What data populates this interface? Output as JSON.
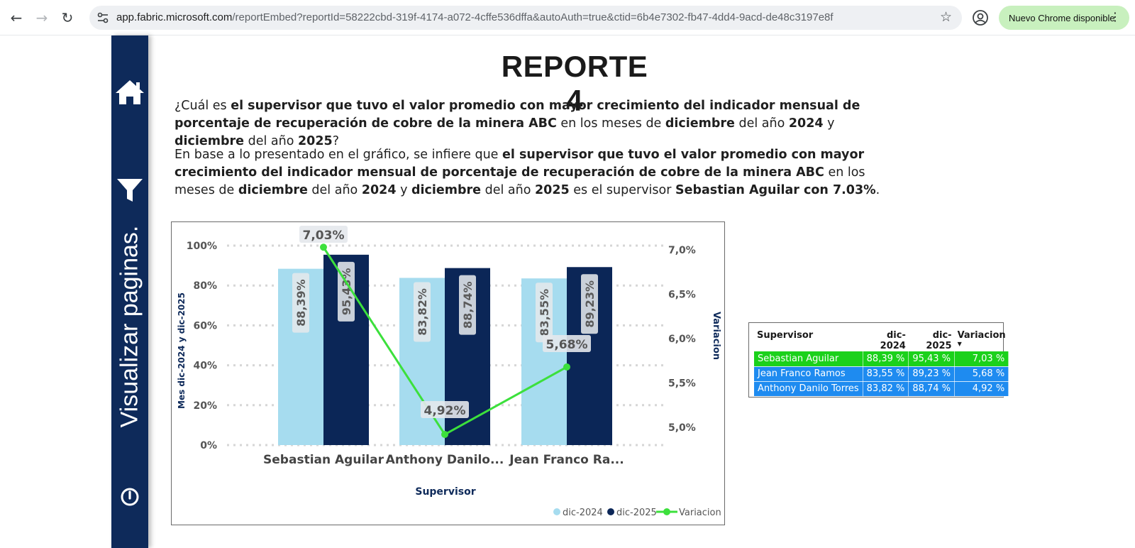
{
  "browser": {
    "url_host": "app.fabric.microsoft.com",
    "url_path": "/reportEmbed?reportId=58222cbd-319f-4174-a072-4cffe536dffa&autoAuth=true&ctid=6b4e7302-fb47-4dd4-9acd-de48c3197e8f",
    "update_label": "Nuevo Chrome disponible",
    "icons": [
      "back-icon",
      "forward-icon",
      "reload-icon",
      "site-settings-icon",
      "star-icon",
      "profile-icon",
      "more-icon"
    ]
  },
  "sidebar": {
    "vertical_label": "Visualizar paginas.",
    "icons": [
      "home-icon",
      "filter-icon",
      "power-icon"
    ],
    "color": "#0e2a5a"
  },
  "report": {
    "title": "REPORTE 4",
    "question": [
      {
        "t": "¿Cuál es ",
        "b": false
      },
      {
        "t": "el supervisor que tuvo el valor promedio con mayor crecimiento del indicador mensual de porcentaje de recuperación de cobre de la minera ABC",
        "b": true
      },
      {
        "t": " en los meses de ",
        "b": false
      },
      {
        "t": "diciembre",
        "b": true
      },
      {
        "t": " del año ",
        "b": false
      },
      {
        "t": "2024",
        "b": true
      },
      {
        "t": " y ",
        "b": false
      },
      {
        "t": "diciembre",
        "b": true
      },
      {
        "t": " del año ",
        "b": false
      },
      {
        "t": "2025",
        "b": true
      },
      {
        "t": "?",
        "b": false
      }
    ],
    "answer": [
      {
        "t": "En base a lo presentado en el gráfico, se infiere que ",
        "b": false
      },
      {
        "t": "el supervisor que tuvo el valor promedio con mayor crecimiento del indicador mensual de porcentaje de recuperación de cobre de la minera ABC",
        "b": true
      },
      {
        "t": " en los meses de ",
        "b": false
      },
      {
        "t": "diciembre",
        "b": true
      },
      {
        "t": " del año ",
        "b": false
      },
      {
        "t": "2024",
        "b": true
      },
      {
        "t": " y ",
        "b": false
      },
      {
        "t": "diciembre",
        "b": true
      },
      {
        "t": " del año ",
        "b": false
      },
      {
        "t": "2025",
        "b": true
      },
      {
        "t": " es el supervisor ",
        "b": false
      },
      {
        "t": "Sebastian Aguilar con 7.03%",
        "b": true
      },
      {
        "t": ".",
        "b": false
      }
    ]
  },
  "chart_data": {
    "type": "bar",
    "categories": [
      "Sebastian Aguilar",
      "Anthony Danilo...",
      "Jean Franco Ra..."
    ],
    "xlabel": "Supervisor",
    "ylabel": "Mes dic-2024 y dic-2025",
    "y2label": "Variacion",
    "ylim": [
      0,
      100
    ],
    "y2lim": [
      4.8,
      7.1
    ],
    "yticks": [
      "0%",
      "20%",
      "40%",
      "60%",
      "80%",
      "100%"
    ],
    "y2ticks": [
      "5,0%",
      "5,5%",
      "6,0%",
      "6,5%",
      "7,0%"
    ],
    "grid": true,
    "legend_position": "bottom-right",
    "series": [
      {
        "name": "dic-2024",
        "kind": "bar",
        "color": "#a6dcef",
        "values": [
          88.39,
          83.82,
          83.55
        ],
        "labels": [
          "88,39%",
          "83,82%",
          "83,55%"
        ]
      },
      {
        "name": "dic-2025",
        "kind": "bar",
        "color": "#0b2657",
        "values": [
          95.43,
          88.74,
          89.23
        ],
        "labels": [
          "95,43%",
          "88,74%",
          "89,23%"
        ]
      },
      {
        "name": "Variacion",
        "kind": "line",
        "axis": "secondary",
        "color": "#3ce03c",
        "values": [
          7.03,
          4.92,
          5.68
        ],
        "labels": [
          "7,03%",
          "4,92%",
          "5,68%"
        ]
      }
    ]
  },
  "table": {
    "headers": [
      "Supervisor",
      "dic-2024",
      "dic-2025",
      "Variacion"
    ],
    "rows": [
      [
        "Sebastian Aguilar",
        "88,39 %",
        "95,43 %",
        "7,03 %"
      ],
      [
        "Jean Franco Ramos",
        "83,55 %",
        "89,23 %",
        "5,68 %"
      ],
      [
        "Anthony Danilo Torres",
        "83,82 %",
        "88,74 %",
        "4,92 %"
      ]
    ],
    "highlight_color": "#1bd11b",
    "row_color": "#1e8bf0"
  }
}
